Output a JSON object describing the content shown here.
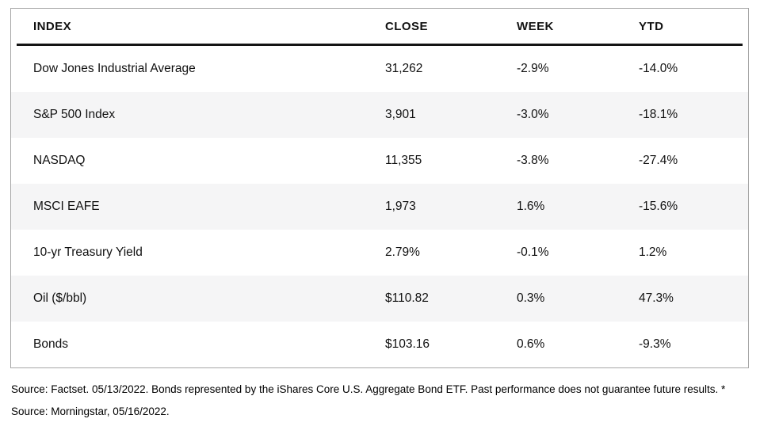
{
  "chart_data": {
    "type": "table",
    "columns": [
      "INDEX",
      "CLOSE",
      "WEEK",
      "YTD"
    ],
    "rows": [
      {
        "index": "Dow Jones Industrial Average",
        "close": "31,262",
        "week": "-2.9%",
        "ytd": "-14.0%"
      },
      {
        "index": "S&P 500 Index",
        "close": "3,901",
        "week": "-3.0%",
        "ytd": "-18.1%"
      },
      {
        "index": "NASDAQ",
        "close": "11,355",
        "week": "-3.8%",
        "ytd": "-27.4%"
      },
      {
        "index": "MSCI EAFE",
        "close": "1,973",
        "week": "1.6%",
        "ytd": "-15.6%"
      },
      {
        "index": "10-yr Treasury Yield",
        "close": "2.79%",
        "week": "-0.1%",
        "ytd": "1.2%"
      },
      {
        "index": "Oil ($/bbl)",
        "close": "$110.82",
        "week": "0.3%",
        "ytd": "47.3%"
      },
      {
        "index": "Bonds",
        "close": "$103.16",
        "week": "0.6%",
        "ytd": "-9.3%"
      }
    ],
    "source_note": "Source: Factset. 05/13/2022. Bonds represented by the iShares Core U.S. Aggregate Bond ETF. Past performance does not guarantee future results. * Source: Morningstar, 05/16/2022.",
    "layout": {
      "alternating_row_shading": true,
      "header_rule": true
    },
    "colors": {
      "row_alt_background": "#f5f5f6",
      "table_border": "#a6a6a6",
      "header_rule": "#141414",
      "text": "#111111"
    }
  }
}
